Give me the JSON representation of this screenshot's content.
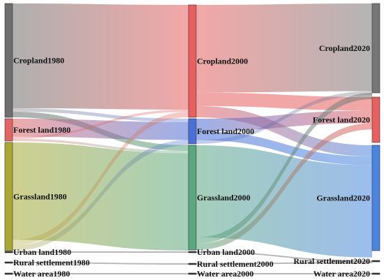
{
  "columns": [
    {
      "id": "c1980",
      "nodes": [
        {
          "id": "crop1980",
          "label": "Cropland1980",
          "color": "#6e6e6e"
        },
        {
          "id": "forest1980",
          "label": "Forest land1980",
          "color": "#e06666"
        },
        {
          "id": "grass1980",
          "label": "Grassland1980",
          "color": "#a8a832"
        },
        {
          "id": "urban1980",
          "label": "Urban land1980",
          "color": "#333333"
        },
        {
          "id": "rural1980",
          "label": "Rural settlement1980",
          "color": "#333333"
        },
        {
          "id": "water1980",
          "label": "Water area1980",
          "color": "#333333"
        }
      ]
    },
    {
      "id": "c2000",
      "nodes": [
        {
          "id": "crop2000",
          "label": "Cropland2000",
          "color": "#e85f5f"
        },
        {
          "id": "forest2000",
          "label": "Forest land2000",
          "color": "#4a6fd6"
        },
        {
          "id": "grass2000",
          "label": "Grassland2000",
          "color": "#5aa880"
        },
        {
          "id": "urban2000",
          "label": "Urban land2000",
          "color": "#333333"
        },
        {
          "id": "rural2000",
          "label": "Rural settlement2000",
          "color": "#333333"
        },
        {
          "id": "water2000",
          "label": "Water area2000",
          "color": "#333333"
        }
      ]
    },
    {
      "id": "c2020",
      "nodes": [
        {
          "id": "crop2020",
          "label": "Cropland2020",
          "color": "#777777"
        },
        {
          "id": "forest2020",
          "label": "Forest land2020",
          "color": "#e85f5f"
        },
        {
          "id": "grass2020",
          "label": "Grassland2020",
          "color": "#4a86e0"
        },
        {
          "id": "rural2020",
          "label": "Rural settlement2020",
          "color": "#333333"
        },
        {
          "id": "water2020",
          "label": "Water area2020",
          "color": "#333333"
        }
      ]
    }
  ],
  "flows": [
    {
      "from": "crop1980",
      "to": "crop2000",
      "color": "#f08a8a"
    },
    {
      "from": "crop1980",
      "to": "forest2000",
      "color": "#c7a0c0"
    },
    {
      "from": "crop1980",
      "to": "grass2000",
      "color": "#b0c0b0"
    },
    {
      "from": "forest1980",
      "to": "forest2000",
      "color": "#9aa8f0"
    },
    {
      "from": "forest1980",
      "to": "crop2000",
      "color": "#f0a0b0"
    },
    {
      "from": "forest1980",
      "to": "grass2000",
      "color": "#a0d0c0"
    },
    {
      "from": "grass1980",
      "to": "grass2000",
      "color": "#9ed6a8"
    },
    {
      "from": "grass1980",
      "to": "crop2000",
      "color": "#d0c090"
    },
    {
      "from": "grass1980",
      "to": "forest2000",
      "color": "#a0d0b0"
    },
    {
      "from": "urban1980",
      "to": "urban2000",
      "color": "#c8d8d0"
    },
    {
      "from": "rural1980",
      "to": "rural2000",
      "color": "#c8d8d0"
    },
    {
      "from": "water1980",
      "to": "water2000",
      "color": "#c8d8d0"
    },
    {
      "from": "crop2000",
      "to": "crop2020",
      "color": "#f6a6a6"
    },
    {
      "from": "crop2000",
      "to": "forest2020",
      "color": "#f5b0b0"
    },
    {
      "from": "crop2000",
      "to": "grass2020",
      "color": "#c8a8d8"
    },
    {
      "from": "forest2000",
      "to": "forest2020",
      "color": "#b08ce0"
    },
    {
      "from": "forest2000",
      "to": "grass2020",
      "color": "#8a88e8"
    },
    {
      "from": "forest2000",
      "to": "crop2020",
      "color": "#c0a0c0"
    },
    {
      "from": "grass2000",
      "to": "grass2020",
      "color": "#88c0e0"
    },
    {
      "from": "grass2000",
      "to": "crop2020",
      "color": "#b0c8b8"
    },
    {
      "from": "grass2000",
      "to": "forest2020",
      "color": "#b0d0c0"
    },
    {
      "from": "urban2000",
      "to": "rural2020",
      "color": "#c8d8e0"
    },
    {
      "from": "rural2000",
      "to": "rural2020",
      "color": "#c8d8e0"
    },
    {
      "from": "water2000",
      "to": "water2020",
      "color": "#c8d8e0"
    }
  ]
}
